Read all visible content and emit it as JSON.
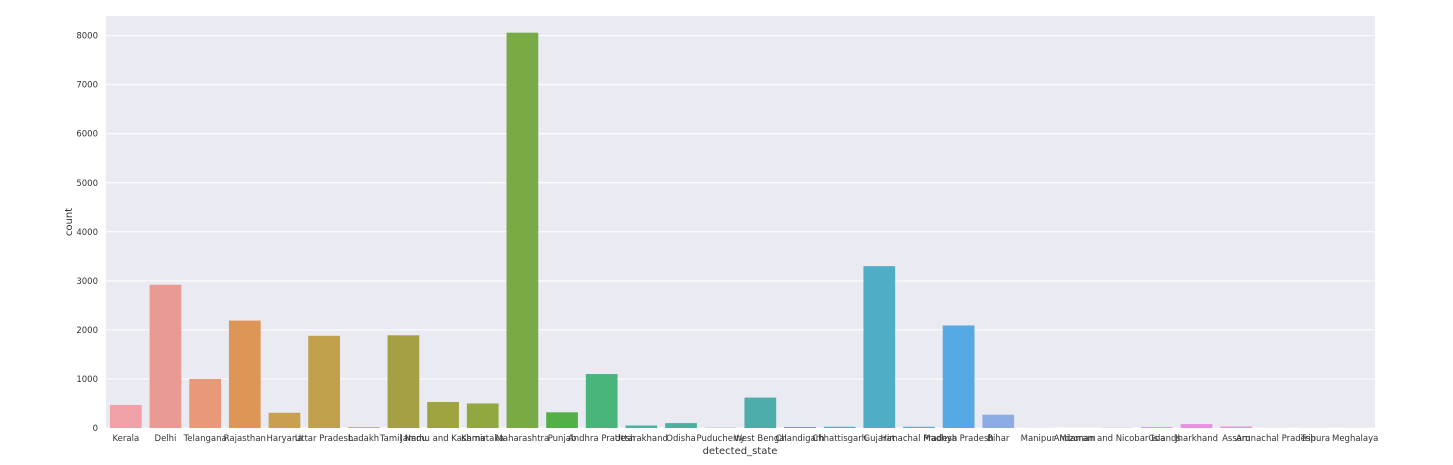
{
  "chart_data": {
    "type": "bar",
    "xlabel": "detected_state",
    "ylabel": "count",
    "ylim": [
      0,
      8400
    ],
    "yticks": [
      0,
      1000,
      2000,
      3000,
      4000,
      5000,
      6000,
      7000,
      8000
    ],
    "grid": true,
    "categories": [
      "Kerala",
      "Delhi",
      "Telangana",
      "Rajasthan",
      "Haryana",
      "Uttar Pradesh",
      "Ladakh",
      "Tamil Nadu",
      "Jammu and Kashmir",
      "Karnataka",
      "Maharashtra",
      "Punjab",
      "Andhra Pradesh",
      "Uttarakhand",
      "Odisha",
      "Puducherry",
      "West Bengal",
      "Chandigarh",
      "Chhattisgarh",
      "Gujarat",
      "Himachal Pradesh",
      "Madhya Pradesh",
      "Bihar",
      "Manipur",
      "Mizoram",
      "Andaman and Nicobar Islands",
      "Goa",
      "Jharkhand",
      "Assam",
      "Arunachal Pradesh",
      "Tripura",
      "Meghalaya"
    ],
    "values": [
      470,
      2920,
      1000,
      2190,
      310,
      1880,
      15,
      1890,
      530,
      500,
      8060,
      320,
      1100,
      50,
      100,
      5,
      620,
      20,
      25,
      3300,
      25,
      2090,
      270,
      2,
      1,
      5,
      20,
      80,
      30,
      2,
      2,
      2
    ],
    "colors": [
      "#f0a0a7",
      "#e99a92",
      "#e8997a",
      "#dd9656",
      "#c9a04f",
      "#c0a04a",
      "#b5a345",
      "#a5a043",
      "#9da33f",
      "#90a83f",
      "#78aa45",
      "#53b049",
      "#4ab57b",
      "#4ab39a",
      "#4bb09f",
      "#4aaea7",
      "#4cadaa",
      "#4cacb0",
      "#4ab0be",
      "#4fadc5",
      "#56abd7",
      "#54a8e3",
      "#8dabe4",
      "#a9a9ea",
      "#b8a6ec",
      "#c7a1ea",
      "#d99ae7",
      "#ea91e3",
      "#f090d2",
      "#f392c1",
      "#f096b3",
      "#ee9ba9"
    ]
  }
}
